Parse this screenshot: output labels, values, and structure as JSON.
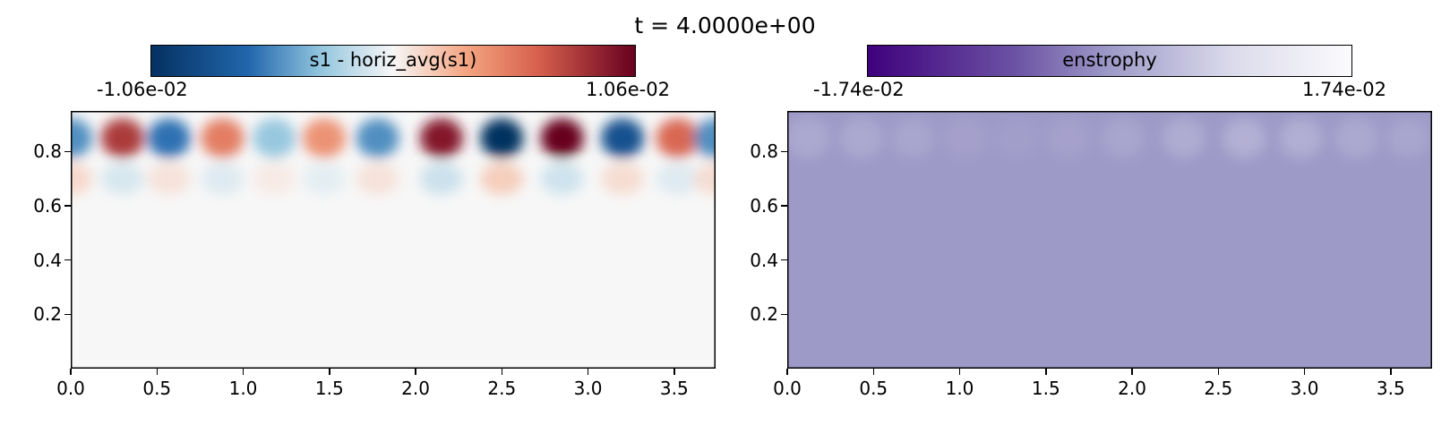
{
  "figure_title": "t = 4.0000e+00",
  "chart_data": [
    {
      "type": "heatmap",
      "colorbar": {
        "label": "s1 - horiz_avg(s1)",
        "min_label": "-1.06e-02",
        "max_label": "1.06e-02",
        "colormap": "RdBu_r",
        "vmin": -0.0106,
        "vmax": 0.0106
      },
      "xlim": [
        0,
        3.74
      ],
      "ylim": [
        0,
        0.95
      ],
      "x_ticks": [
        0.0,
        0.5,
        1.0,
        1.5,
        2.0,
        2.5,
        3.0,
        3.5
      ],
      "x_tick_labels": [
        "0.0",
        "0.5",
        "1.0",
        "1.5",
        "2.0",
        "2.5",
        "3.0",
        "3.5"
      ],
      "y_ticks": [
        0.2,
        0.4,
        0.6,
        0.8
      ],
      "y_tick_labels": [
        "0.2",
        "0.4",
        "0.6",
        "0.8"
      ],
      "cells_upper_row_y": 0.85,
      "cells_upper_row": [
        {
          "x": 0.0,
          "value": -0.005
        },
        {
          "x": 0.3,
          "value": 0.008
        },
        {
          "x": 0.57,
          "value": -0.006
        },
        {
          "x": 0.88,
          "value": 0.005
        },
        {
          "x": 1.18,
          "value": -0.003
        },
        {
          "x": 1.47,
          "value": 0.004
        },
        {
          "x": 1.78,
          "value": -0.005
        },
        {
          "x": 2.15,
          "value": 0.0095
        },
        {
          "x": 2.5,
          "value": -0.0106
        },
        {
          "x": 2.85,
          "value": 0.0106
        },
        {
          "x": 3.2,
          "value": -0.008
        },
        {
          "x": 3.52,
          "value": 0.006
        },
        {
          "x": 3.74,
          "value": -0.005
        }
      ],
      "cells_lower_row_y": 0.7,
      "cells_lower_row": [
        {
          "x": 0.0,
          "value": 0.0012
        },
        {
          "x": 0.3,
          "value": -0.001
        },
        {
          "x": 0.57,
          "value": 0.0008
        },
        {
          "x": 0.88,
          "value": -0.0008
        },
        {
          "x": 1.18,
          "value": 0.0005
        },
        {
          "x": 1.47,
          "value": -0.0006
        },
        {
          "x": 1.78,
          "value": 0.0008
        },
        {
          "x": 2.15,
          "value": -0.0014
        },
        {
          "x": 2.5,
          "value": 0.0016
        },
        {
          "x": 2.85,
          "value": -0.0013
        },
        {
          "x": 3.2,
          "value": 0.001
        },
        {
          "x": 3.52,
          "value": -0.0008
        },
        {
          "x": 3.74,
          "value": 0.001
        }
      ]
    },
    {
      "type": "heatmap",
      "colorbar": {
        "label": "enstrophy",
        "min_label": "-1.74e-02",
        "max_label": "1.74e-02",
        "colormap": "Purples_r",
        "vmin": -0.0174,
        "vmax": 0.0174
      },
      "xlim": [
        0,
        3.74
      ],
      "ylim": [
        0,
        0.95
      ],
      "x_ticks": [
        0.0,
        0.5,
        1.0,
        1.5,
        2.0,
        2.5,
        3.0,
        3.5
      ],
      "x_tick_labels": [
        "0.0",
        "0.5",
        "1.0",
        "1.5",
        "2.0",
        "2.5",
        "3.0",
        "3.5"
      ],
      "y_ticks": [
        0.2,
        0.4,
        0.6,
        0.8
      ],
      "y_tick_labels": [
        "0.2",
        "0.4",
        "0.6",
        "0.8"
      ],
      "background_value": 0.0,
      "cells_upper_row_y": 0.85,
      "cells_upper_row": [
        {
          "x": 0.12,
          "value": 0.002
        },
        {
          "x": 0.43,
          "value": 0.002
        },
        {
          "x": 0.73,
          "value": 0.0015
        },
        {
          "x": 1.03,
          "value": 0.0008
        },
        {
          "x": 1.33,
          "value": 0.0006
        },
        {
          "x": 1.63,
          "value": 0.001
        },
        {
          "x": 1.95,
          "value": 0.0015
        },
        {
          "x": 2.3,
          "value": 0.0025
        },
        {
          "x": 2.65,
          "value": 0.003
        },
        {
          "x": 2.98,
          "value": 0.0028
        },
        {
          "x": 3.3,
          "value": 0.002
        },
        {
          "x": 3.6,
          "value": 0.0015
        }
      ]
    }
  ]
}
